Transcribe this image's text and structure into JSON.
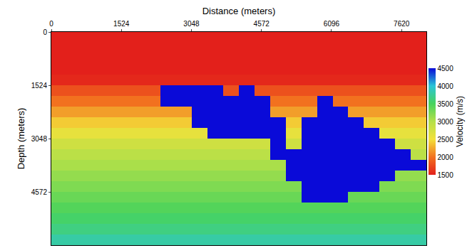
{
  "chart_data": {
    "type": "heatmap",
    "xlabel": "Distance (meters)",
    "ylabel": "Depth (meters)",
    "x": [
      170,
      510,
      850,
      1190,
      1530,
      1870,
      2210,
      2550,
      2890,
      3230,
      3570,
      3910,
      4250,
      4590,
      4930,
      5270,
      5610,
      5950,
      6290,
      6630,
      6970,
      7310,
      7650,
      7990
    ],
    "y": [
      152.4,
      457.2,
      762,
      1066.8,
      1371.6,
      1676.4,
      1981.2,
      2286,
      2590.8,
      2895.6,
      3200.4,
      3505.2,
      3810,
      4114.8,
      4419.6,
      4724.4,
      5029.2,
      5334,
      5638.8,
      5943.6
    ],
    "z": [
      [
        1500,
        1500,
        1500,
        1500,
        1500,
        1500,
        1500,
        1500,
        1500,
        1500,
        1500,
        1500,
        1500,
        1500,
        1500,
        1500,
        1500,
        1500,
        1500,
        1500,
        1500,
        1500,
        1500,
        1500
      ],
      [
        1500,
        1500,
        1500,
        1500,
        1500,
        1500,
        1500,
        1500,
        1500,
        1500,
        1500,
        1500,
        1500,
        1500,
        1500,
        1500,
        1500,
        1500,
        1500,
        1500,
        1500,
        1500,
        1500,
        1500
      ],
      [
        1500,
        1500,
        1500,
        1500,
        1500,
        1500,
        1500,
        1500,
        1500,
        1500,
        1500,
        1500,
        1500,
        1500,
        1500,
        1500,
        1500,
        1500,
        1500,
        1500,
        1500,
        1500,
        1500,
        1500
      ],
      [
        1500,
        1500,
        1500,
        1500,
        1500,
        1500,
        1500,
        1500,
        1500,
        1500,
        1500,
        1500,
        1500,
        1500,
        1500,
        1500,
        1500,
        1500,
        1500,
        1500,
        1500,
        1500,
        1500,
        1500
      ],
      [
        1550,
        1550,
        1550,
        1550,
        1550,
        1550,
        1550,
        1550,
        1550,
        1550,
        1550,
        1550,
        1550,
        1550,
        1550,
        1550,
        1550,
        1550,
        1550,
        1550,
        1550,
        1550,
        1550,
        1550
      ],
      [
        1800,
        1800,
        1800,
        1800,
        1800,
        1800,
        1800,
        4500,
        4500,
        4500,
        4500,
        1800,
        4500,
        1800,
        1800,
        1800,
        1800,
        1800,
        1800,
        1800,
        1800,
        1800,
        1800,
        1800
      ],
      [
        2000,
        2000,
        2000,
        2000,
        2000,
        2000,
        2000,
        4500,
        4500,
        4500,
        4500,
        4500,
        4500,
        4500,
        2000,
        2000,
        2000,
        4500,
        2000,
        2000,
        2000,
        2000,
        2000,
        2000
      ],
      [
        2200,
        2200,
        2200,
        2200,
        2200,
        2200,
        2200,
        2200,
        2200,
        4500,
        4500,
        4500,
        4500,
        4500,
        2200,
        2200,
        2200,
        4500,
        4500,
        2200,
        2200,
        2200,
        2200,
        2200
      ],
      [
        2400,
        2400,
        2400,
        2400,
        2400,
        2400,
        2400,
        2400,
        2400,
        4500,
        4500,
        4500,
        4500,
        4500,
        4500,
        2400,
        4500,
        4500,
        4500,
        4500,
        2400,
        2400,
        2400,
        2400
      ],
      [
        2600,
        2600,
        2600,
        2600,
        2600,
        2600,
        2600,
        2600,
        2600,
        2600,
        4500,
        4500,
        4500,
        4500,
        4500,
        2600,
        4500,
        4500,
        4500,
        4500,
        4500,
        2600,
        2600,
        2600
      ],
      [
        2800,
        2800,
        2800,
        2800,
        2800,
        2800,
        2800,
        2800,
        2800,
        2800,
        2800,
        2800,
        2800,
        2800,
        4500,
        2800,
        4500,
        4500,
        4500,
        4500,
        4500,
        4500,
        2800,
        2800
      ],
      [
        2950,
        2950,
        2950,
        2950,
        2950,
        2950,
        2950,
        2950,
        2950,
        2950,
        2950,
        2950,
        2950,
        2950,
        4500,
        4500,
        4500,
        4500,
        4500,
        4500,
        4500,
        4500,
        4500,
        2950
      ],
      [
        3050,
        3050,
        3050,
        3050,
        3050,
        3050,
        3050,
        3050,
        3050,
        3050,
        3050,
        3050,
        3050,
        3050,
        3050,
        4500,
        4500,
        4500,
        4500,
        4500,
        4500,
        4500,
        4500,
        4500
      ],
      [
        3150,
        3150,
        3150,
        3150,
        3150,
        3150,
        3150,
        3150,
        3150,
        3150,
        3150,
        3150,
        3150,
        3150,
        3150,
        4500,
        4500,
        4500,
        4500,
        4500,
        4500,
        4500,
        3150,
        3150
      ],
      [
        3250,
        3250,
        3250,
        3250,
        3250,
        3250,
        3250,
        3250,
        3250,
        3250,
        3250,
        3250,
        3250,
        3250,
        3250,
        3250,
        4500,
        4500,
        4500,
        4500,
        4500,
        3250,
        3250,
        3250
      ],
      [
        3350,
        3350,
        3350,
        3350,
        3350,
        3350,
        3350,
        3350,
        3350,
        3350,
        3350,
        3350,
        3350,
        3350,
        3350,
        3350,
        4500,
        4500,
        4500,
        3350,
        3350,
        3350,
        3350,
        3350
      ],
      [
        3450,
        3450,
        3450,
        3450,
        3450,
        3450,
        3450,
        3450,
        3450,
        3450,
        3450,
        3450,
        3450,
        3450,
        3450,
        3450,
        3450,
        3450,
        3450,
        3450,
        3450,
        3450,
        3450,
        3450
      ],
      [
        3550,
        3550,
        3550,
        3550,
        3550,
        3550,
        3550,
        3550,
        3550,
        3550,
        3550,
        3550,
        3550,
        3550,
        3550,
        3550,
        3550,
        3550,
        3550,
        3550,
        3550,
        3550,
        3550,
        3550
      ],
      [
        3650,
        3650,
        3650,
        3650,
        3650,
        3650,
        3650,
        3650,
        3650,
        3650,
        3650,
        3650,
        3650,
        3650,
        3650,
        3650,
        3650,
        3650,
        3650,
        3650,
        3650,
        3650,
        3650,
        3650
      ],
      [
        3800,
        3800,
        3800,
        3800,
        3800,
        3800,
        3800,
        3800,
        3800,
        3800,
        3800,
        3800,
        3800,
        3800,
        3800,
        3800,
        3800,
        3800,
        3800,
        3800,
        3800,
        3800,
        3800,
        3800
      ]
    ],
    "xlim": [
      0,
      8160
    ],
    "ylim": [
      6096,
      0
    ],
    "xticks": [
      0,
      1524,
      3048,
      4572,
      6096,
      7620
    ],
    "yticks": [
      0,
      1524,
      3048,
      4572
    ],
    "colorbar_title": "Velocity (m/s)",
    "colorbar_range": [
      1500,
      4500
    ],
    "colorbar_ticks": [
      1500,
      2000,
      2500,
      3000,
      3500,
      4000,
      4500
    ]
  }
}
